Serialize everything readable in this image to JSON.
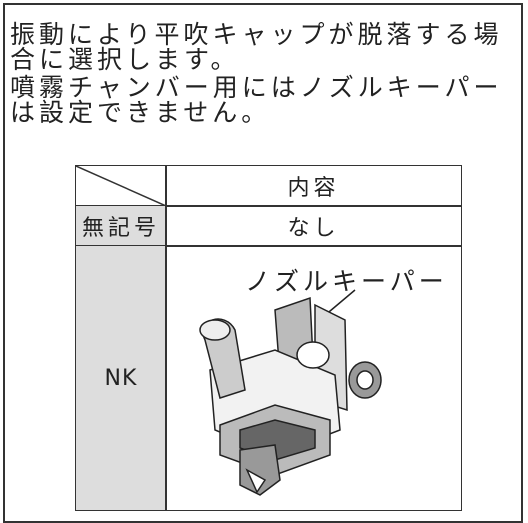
{
  "description": {
    "lines": [
      "振動により平吹キャップが脱落する場",
      "合に選択します。",
      "噴霧チャンバー用にはノズルキーパー",
      "は設定できません。"
    ]
  },
  "table": {
    "header": [
      "内容"
    ],
    "rows": [
      [
        "無記号",
        "なし"
      ],
      [
        "NK",
        ""
      ]
    ],
    "image_label": "ノズルキーパー"
  }
}
